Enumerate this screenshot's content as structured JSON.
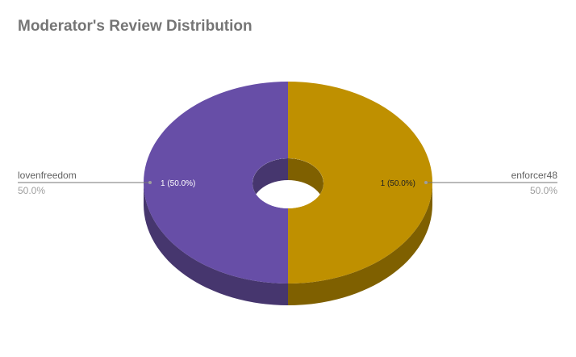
{
  "chart_data": {
    "type": "pie",
    "style": "3d-donut",
    "title": "Moderator's Review Distribution",
    "categories": [
      "lovenfreedom",
      "enforcer48"
    ],
    "values": [
      1,
      1
    ],
    "slice_labels": [
      "1 (50.0%)",
      "1 (50.0%)"
    ],
    "percent_labels": [
      "50.0%",
      "50.0%"
    ],
    "colors": {
      "lovenfreedom": "#674ea7",
      "enforcer48": "#bf9000",
      "lovenfreedom_side": "#46366e",
      "enforcer48_side": "#7f6000"
    },
    "legend": "side-labels"
  }
}
